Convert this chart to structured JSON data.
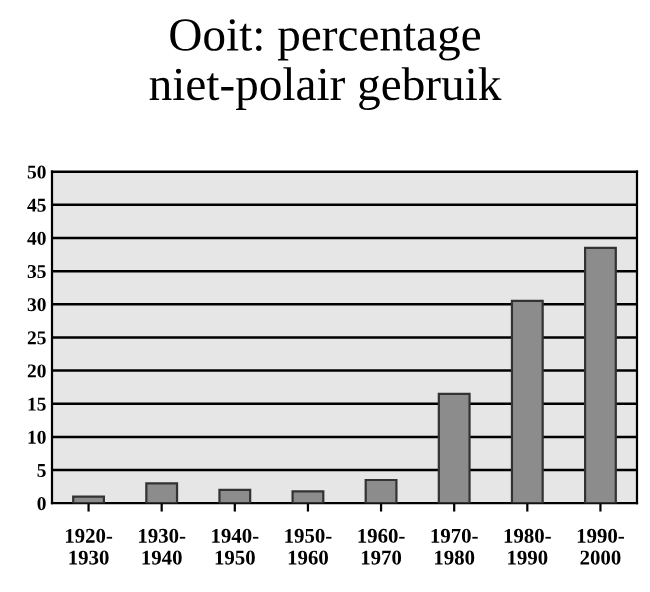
{
  "chart_data": {
    "type": "bar",
    "title": "Ooit: percentage\nniet-polair gebruik",
    "categories": [
      "1920-\n1930",
      "1930-\n1940",
      "1940-\n1950",
      "1950-\n1960",
      "1960-\n1970",
      "1970-\n1980",
      "1980-\n1990",
      "1990-\n2000"
    ],
    "values": [
      1,
      3,
      2,
      1.8,
      3.5,
      16.5,
      30.5,
      38.5
    ],
    "color": "#8c8c8c",
    "ylim": [
      0,
      50
    ],
    "yticks": [
      0,
      5,
      10,
      15,
      20,
      25,
      30,
      35,
      40,
      45,
      50
    ],
    "grid": "y"
  }
}
